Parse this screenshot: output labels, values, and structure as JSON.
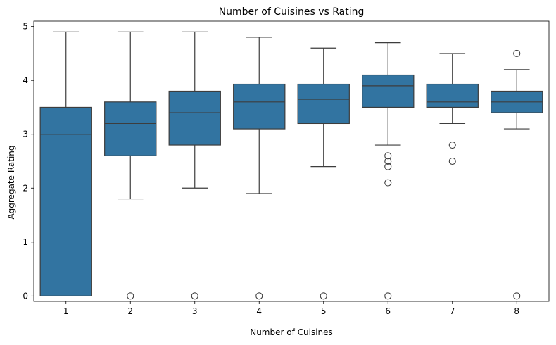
{
  "chart_data": {
    "type": "box",
    "title": "Number of Cuisines vs Rating",
    "xlabel": "Number of Cuisines",
    "ylabel": "Aggregate Rating",
    "ylim": [
      -0.1,
      5.1
    ],
    "yticks": [
      0,
      1,
      2,
      3,
      4,
      5
    ],
    "grid": false,
    "legend": "none",
    "box_color": "#3274a1",
    "edge_color": "#3d3d3d",
    "categories": [
      "1",
      "2",
      "3",
      "4",
      "5",
      "6",
      "7",
      "8"
    ],
    "boxes": [
      {
        "category": "1",
        "whisker_low": 0.0,
        "q1": 0.0,
        "median": 3.0,
        "q3": 3.5,
        "whisker_high": 4.9,
        "outliers": []
      },
      {
        "category": "2",
        "whisker_low": 1.8,
        "q1": 2.6,
        "median": 3.2,
        "q3": 3.6,
        "whisker_high": 4.9,
        "outliers": [
          0.0
        ]
      },
      {
        "category": "3",
        "whisker_low": 2.0,
        "q1": 2.8,
        "median": 3.4,
        "q3": 3.8,
        "whisker_high": 4.9,
        "outliers": [
          0.0
        ]
      },
      {
        "category": "4",
        "whisker_low": 1.9,
        "q1": 3.1,
        "median": 3.6,
        "q3": 3.93,
        "whisker_high": 4.8,
        "outliers": [
          0.0
        ]
      },
      {
        "category": "5",
        "whisker_low": 2.4,
        "q1": 3.2,
        "median": 3.65,
        "q3": 3.93,
        "whisker_high": 4.6,
        "outliers": [
          0.0
        ]
      },
      {
        "category": "6",
        "whisker_low": 2.8,
        "q1": 3.5,
        "median": 3.9,
        "q3": 4.1,
        "whisker_high": 4.7,
        "outliers": [
          2.6,
          2.5,
          2.4,
          2.1,
          0.0
        ]
      },
      {
        "category": "7",
        "whisker_low": 3.2,
        "q1": 3.5,
        "median": 3.6,
        "q3": 3.93,
        "whisker_high": 4.5,
        "outliers": [
          2.8,
          2.5
        ]
      },
      {
        "category": "8",
        "whisker_low": 3.1,
        "q1": 3.4,
        "median": 3.6,
        "q3": 3.8,
        "whisker_high": 4.2,
        "outliers": [
          4.5,
          0.0
        ]
      }
    ]
  }
}
